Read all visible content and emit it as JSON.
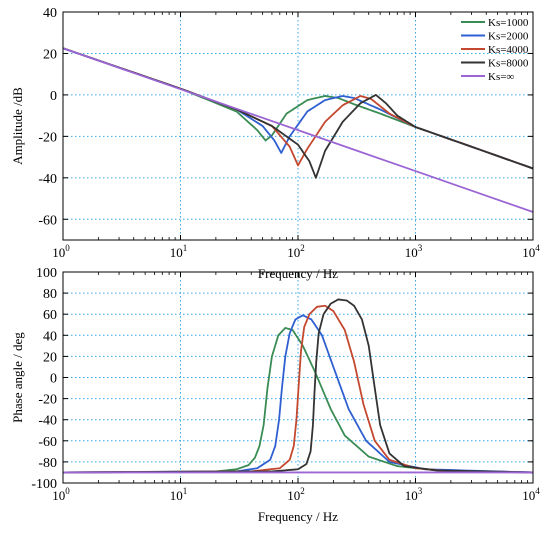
{
  "chart_data": [
    {
      "type": "line",
      "xlabel": "Frequency / Hz",
      "ylabel": "Amplitude /dB",
      "x_scale": "log",
      "xlim": [
        1,
        10000
      ],
      "ylim": [
        -70,
        40
      ],
      "x_ticks": [
        {
          "value": 1,
          "base": "10",
          "exp": "0"
        },
        {
          "value": 10,
          "base": "10",
          "exp": "1"
        },
        {
          "value": 100,
          "base": "10",
          "exp": "2"
        },
        {
          "value": 1000,
          "base": "10",
          "exp": "3"
        },
        {
          "value": 10000,
          "base": "10",
          "exp": "4"
        }
      ],
      "y_ticks": [
        {
          "value": -60,
          "label": "-60"
        },
        {
          "value": -40,
          "label": "-40"
        },
        {
          "value": -20,
          "label": "-20"
        },
        {
          "value": 0,
          "label": "0"
        },
        {
          "value": 20,
          "label": "20"
        },
        {
          "value": 40,
          "label": "40"
        }
      ],
      "grid": true,
      "grid_style": "dotted",
      "legend_position": "top-right",
      "series": [
        {
          "name": "Ks=1000",
          "color": "#3a8c55",
          "x": [
            1,
            10,
            30,
            45,
            53,
            60,
            80,
            120,
            170,
            220,
            300,
            500,
            1000,
            3000,
            10000
          ],
          "y": [
            22.5,
            3,
            -8,
            -17,
            -22,
            -19.5,
            -9,
            -2.5,
            -0.5,
            -1.5,
            -4.5,
            -9,
            -15.5,
            -25,
            -35.5
          ]
        },
        {
          "name": "Ks=2000",
          "color": "#2f5fd0",
          "x": [
            1,
            10,
            30,
            50,
            63,
            72,
            85,
            120,
            170,
            240,
            300,
            500,
            1000,
            3000,
            10000
          ],
          "y": [
            22.5,
            3,
            -7,
            -15,
            -22,
            -28,
            -20,
            -8,
            -2.5,
            -0.5,
            -1.5,
            -7,
            -15.5,
            -25,
            -35.5
          ]
        },
        {
          "name": "Ks=4000",
          "color": "#c4482f",
          "x": [
            1,
            10,
            30,
            60,
            85,
            100,
            120,
            170,
            240,
            340,
            420,
            600,
            1000,
            3000,
            10000
          ],
          "y": [
            22.5,
            3,
            -7,
            -15,
            -25,
            -34,
            -26,
            -13,
            -5,
            -0.5,
            -2,
            -9,
            -15.5,
            -25,
            -35.5
          ]
        },
        {
          "name": "Ks=8000",
          "color": "#333333",
          "x": [
            1,
            10,
            30,
            60,
            100,
            125,
            142,
            170,
            240,
            340,
            460,
            560,
            700,
            1000,
            3000,
            10000
          ],
          "y": [
            22.5,
            3,
            -7,
            -15,
            -24,
            -32,
            -40,
            -27,
            -13,
            -4,
            0,
            -4,
            -10,
            -15.5,
            -25,
            -35.5
          ]
        },
        {
          "name": "Ks=∞",
          "color": "#9b66d4",
          "x": [
            1,
            10000
          ],
          "y": [
            22.5,
            -56.5
          ]
        }
      ]
    },
    {
      "type": "line",
      "xlabel": "Frequency / Hz",
      "ylabel": "Phase angle / deg",
      "x_scale": "log",
      "xlim": [
        1,
        10000
      ],
      "ylim": [
        -100,
        100
      ],
      "x_ticks": [
        {
          "value": 1,
          "base": "10",
          "exp": "0"
        },
        {
          "value": 10,
          "base": "10",
          "exp": "1"
        },
        {
          "value": 100,
          "base": "10",
          "exp": "2"
        },
        {
          "value": 1000,
          "base": "10",
          "exp": "3"
        },
        {
          "value": 10000,
          "base": "10",
          "exp": "4"
        }
      ],
      "y_ticks": [
        {
          "value": -100,
          "label": "-100"
        },
        {
          "value": -80,
          "label": "-80"
        },
        {
          "value": -60,
          "label": "-60"
        },
        {
          "value": -40,
          "label": "-40"
        },
        {
          "value": -20,
          "label": "-20"
        },
        {
          "value": 0,
          "label": "0"
        },
        {
          "value": 20,
          "label": "20"
        },
        {
          "value": 40,
          "label": "40"
        },
        {
          "value": 60,
          "label": "60"
        },
        {
          "value": 80,
          "label": "80"
        },
        {
          "value": 100,
          "label": "100"
        }
      ],
      "grid": true,
      "grid_style": "dotted",
      "series": [
        {
          "name": "Ks=1000",
          "color": "#3a8c55",
          "x": [
            1,
            20,
            30,
            38,
            43,
            47,
            51,
            55,
            60,
            68,
            78,
            90,
            110,
            140,
            190,
            250,
            400,
            700,
            1500,
            10000
          ],
          "y": [
            -90,
            -89,
            -87,
            -83,
            -76,
            -65,
            -45,
            -10,
            20,
            40,
            47,
            45,
            30,
            5,
            -30,
            -55,
            -75,
            -84,
            -88,
            -90
          ]
        },
        {
          "name": "Ks=2000",
          "color": "#2f5fd0",
          "x": [
            1,
            30,
            45,
            58,
            64,
            69,
            73,
            78,
            85,
            95,
            110,
            130,
            160,
            200,
            270,
            380,
            600,
            1200,
            10000
          ],
          "y": [
            -90,
            -89,
            -86,
            -78,
            -65,
            -40,
            -10,
            20,
            42,
            55,
            59,
            55,
            40,
            10,
            -30,
            -60,
            -80,
            -87,
            -90
          ]
        },
        {
          "name": "Ks=4000",
          "color": "#c4482f",
          "x": [
            1,
            40,
            70,
            85,
            92,
            97,
            101,
            106,
            113,
            125,
            145,
            170,
            200,
            250,
            300,
            360,
            450,
            600,
            1000,
            2000,
            10000
          ],
          "y": [
            -90,
            -89,
            -86,
            -78,
            -65,
            -40,
            -10,
            25,
            48,
            60,
            67,
            68,
            63,
            45,
            15,
            -25,
            -60,
            -78,
            -86,
            -89,
            -90
          ]
        },
        {
          "name": "Ks=8000",
          "color": "#333333",
          "x": [
            1,
            60,
            100,
            118,
            128,
            134,
            138,
            143,
            150,
            165,
            190,
            220,
            260,
            300,
            350,
            400,
            450,
            500,
            600,
            800,
            1500,
            10000
          ],
          "y": [
            -90,
            -89,
            -87,
            -82,
            -70,
            -45,
            -15,
            15,
            42,
            60,
            70,
            74,
            73,
            68,
            55,
            30,
            -10,
            -45,
            -72,
            -84,
            -88,
            -90
          ]
        },
        {
          "name": "Ks=∞",
          "color": "#9b66d4",
          "x": [
            1,
            10000
          ],
          "y": [
            -90,
            -90
          ]
        }
      ]
    }
  ]
}
